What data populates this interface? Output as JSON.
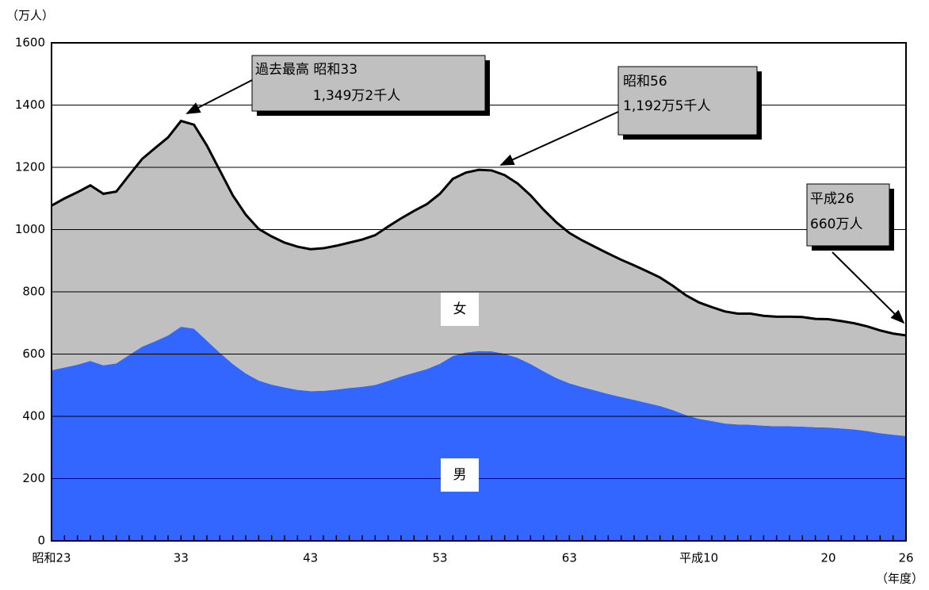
{
  "chart_data": {
    "type": "area",
    "y_unit": "（万人）",
    "x_unit": "（年度）",
    "categories": [
      "昭和23",
      null,
      null,
      null,
      null,
      null,
      null,
      null,
      null,
      null,
      "33",
      null,
      null,
      null,
      null,
      null,
      null,
      null,
      null,
      null,
      "43",
      null,
      null,
      null,
      null,
      null,
      null,
      null,
      null,
      null,
      "53",
      null,
      null,
      null,
      null,
      null,
      null,
      null,
      null,
      null,
      "63",
      null,
      null,
      null,
      null,
      null,
      null,
      null,
      null,
      null,
      "平成10",
      null,
      null,
      null,
      null,
      null,
      null,
      null,
      null,
      null,
      "20",
      null,
      null,
      null,
      null,
      null,
      "26"
    ],
    "series": [
      {
        "name": "男",
        "color": "#3366ff",
        "values": [
          548,
          557,
          566,
          578,
          564,
          570,
          597,
          624,
          641,
          660,
          688,
          682,
          643,
          604,
          568,
          538,
          515,
          502,
          493,
          485,
          481,
          482,
          486,
          491,
          495,
          501,
          514,
          528,
          540,
          552,
          569,
          594,
          605,
          610,
          609,
          601,
          588,
          568,
          545,
          523,
          506,
          494,
          483,
          472,
          462,
          453,
          443,
          433,
          420,
          404,
          392,
          385,
          377,
          374,
          373,
          370,
          368,
          368,
          367,
          365,
          364,
          361,
          358,
          353,
          346,
          341,
          337
        ]
      },
      {
        "name": "女",
        "color": "#c0c0c0",
        "values": [
          529,
          543,
          554,
          564,
          551,
          552,
          578,
          603,
          621,
          636,
          661,
          655,
          627,
          586,
          542,
          510,
          487,
          476,
          465,
          460,
          456,
          458,
          462,
          467,
          473,
          481,
          496,
          508,
          520,
          530,
          546,
          569,
          578,
          582,
          581,
          574,
          560,
          542,
          519,
          500,
          483,
          471,
          461,
          451,
          441,
          432,
          423,
          413,
          399,
          385,
          374,
          366,
          360,
          356,
          357,
          353,
          352,
          352,
          352,
          348,
          348,
          345,
          341,
          336,
          330,
          325,
          323
        ]
      }
    ],
    "stacked": true,
    "ylim": [
      0,
      1600
    ],
    "yticks": [
      0,
      200,
      400,
      600,
      800,
      1000,
      1200,
      1400,
      1600
    ],
    "grid": true,
    "annotations": [
      {
        "text": [
          "過去最高 昭和33",
          "1,349万2千人"
        ]
      },
      {
        "text": [
          "昭和56",
          "1,192万5千人"
        ]
      },
      {
        "text": [
          "平成26",
          "660万人"
        ]
      }
    ]
  }
}
